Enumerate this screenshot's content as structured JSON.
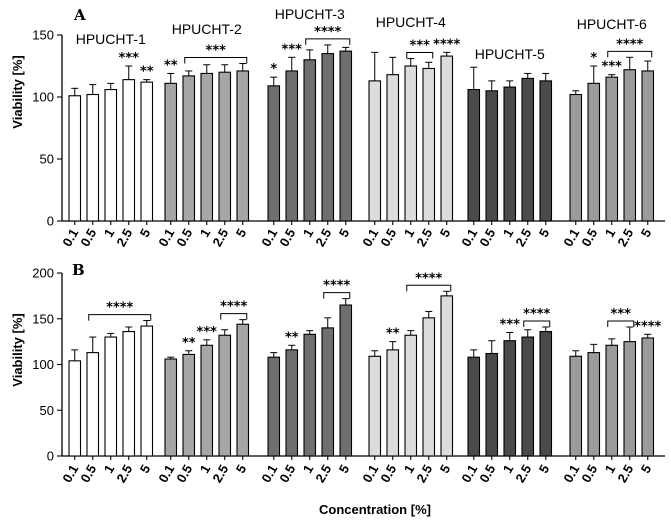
{
  "figure": {
    "x_axis_title": "Concentration [%]",
    "y_axis_title": "Viability [%]"
  },
  "chart_data": [
    {
      "type": "bar",
      "panel": "A",
      "ylabel": "Viability [%]",
      "ylim": [
        0,
        150
      ],
      "yticks": [
        0,
        50,
        100,
        150
      ],
      "categories": [
        "0.1",
        "0.5",
        "1",
        "2.5",
        "5"
      ],
      "series": [
        {
          "name": "HPUCHT-1",
          "title": "HPUCHT-1",
          "fill": "#ffffff",
          "values": [
            101,
            102,
            106,
            114,
            112
          ],
          "errors": [
            6,
            8,
            5,
            11,
            2
          ],
          "marks": [
            "",
            "",
            "",
            "***",
            "**"
          ],
          "bracket": null
        },
        {
          "name": "HPUCHT-2",
          "title": "HPUCHT-2",
          "fill": "#a6a6a6",
          "values": [
            111,
            117,
            119,
            120,
            121
          ],
          "errors": [
            8,
            4,
            7,
            6,
            6
          ],
          "marks": [
            "**",
            "",
            "",
            "",
            ""
          ],
          "bracket": {
            "from": 1,
            "to": 4,
            "label": "***"
          }
        },
        {
          "name": "HPUCHT-3",
          "title": "HPUCHT-3",
          "fill": "#6f6f6f",
          "values": [
            109,
            121,
            130,
            135,
            137
          ],
          "errors": [
            7,
            11,
            8,
            7,
            3
          ],
          "marks": [
            "*",
            "***",
            "",
            "",
            ""
          ],
          "bracket": {
            "from": 2,
            "to": 4,
            "label": "****"
          }
        },
        {
          "name": "HPUCHT-4",
          "title": "HPUCHT-4",
          "fill": "#dcdcdc",
          "values": [
            113,
            118,
            125,
            123,
            133
          ],
          "errors": [
            23,
            14,
            6,
            5,
            3
          ],
          "marks": [
            "",
            "",
            "",
            "",
            "****"
          ],
          "bracket": {
            "from": 2,
            "to": 3,
            "label": "***"
          }
        },
        {
          "name": "HPUCHT-5",
          "title": "HPUCHT-5",
          "fill": "#4a4a4a",
          "values": [
            106,
            105,
            108,
            115,
            113
          ],
          "errors": [
            18,
            8,
            5,
            4,
            6
          ],
          "marks": [
            "",
            "",
            "",
            "",
            ""
          ],
          "bracket": null
        },
        {
          "name": "HPUCHT-6",
          "title": "HPUCHT-6",
          "fill": "#9b9b9b",
          "values": [
            102,
            111,
            116,
            122,
            121
          ],
          "errors": [
            3,
            14,
            2,
            10,
            8
          ],
          "marks": [
            "",
            "*",
            "***",
            "",
            ""
          ],
          "bracket": {
            "from": 2,
            "to": 4,
            "label": "****"
          }
        }
      ]
    },
    {
      "type": "bar",
      "panel": "B",
      "ylabel": "Viability [%]",
      "xlabel": "Concentration [%]",
      "ylim": [
        0,
        200
      ],
      "yticks": [
        0,
        50,
        100,
        150,
        200
      ],
      "categories": [
        "0.1",
        "0.5",
        "1",
        "2.5",
        "5"
      ],
      "series": [
        {
          "name": "HPUCHT-1",
          "fill": "#ffffff",
          "values": [
            104,
            113,
            130,
            136,
            142
          ],
          "errors": [
            12,
            17,
            4,
            5,
            6
          ],
          "marks": [
            "",
            "",
            "",
            "",
            ""
          ],
          "bracket": {
            "from": 1,
            "to": 4,
            "label": "****"
          }
        },
        {
          "name": "HPUCHT-2",
          "fill": "#a6a6a6",
          "values": [
            106,
            111,
            121,
            132,
            144
          ],
          "errors": [
            2,
            4,
            6,
            6,
            5
          ],
          "marks": [
            "",
            "**",
            "***",
            "",
            ""
          ],
          "bracket": {
            "from": 3,
            "to": 4,
            "label": "****"
          }
        },
        {
          "name": "HPUCHT-3",
          "fill": "#6f6f6f",
          "values": [
            108,
            116,
            133,
            140,
            165
          ],
          "errors": [
            5,
            5,
            4,
            11,
            7
          ],
          "marks": [
            "",
            "**",
            "",
            "",
            ""
          ],
          "bracket": {
            "from": 3,
            "to": 4,
            "label": "****"
          }
        },
        {
          "name": "HPUCHT-4",
          "fill": "#dcdcdc",
          "values": [
            109,
            116,
            132,
            151,
            175
          ],
          "errors": [
            6,
            9,
            5,
            7,
            5
          ],
          "marks": [
            "",
            "**",
            "",
            "",
            ""
          ],
          "bracket": {
            "from": 2,
            "to": 4,
            "label": "****"
          }
        },
        {
          "name": "HPUCHT-5",
          "fill": "#4a4a4a",
          "values": [
            108,
            112,
            126,
            130,
            136
          ],
          "errors": [
            8,
            14,
            9,
            8,
            5
          ],
          "marks": [
            "",
            "",
            "***",
            "",
            ""
          ],
          "bracket": {
            "from": 3,
            "to": 4,
            "label": "****"
          }
        },
        {
          "name": "HPUCHT-6",
          "fill": "#9b9b9b",
          "values": [
            109,
            113,
            121,
            125,
            129
          ],
          "errors": [
            6,
            9,
            7,
            16,
            4
          ],
          "marks": [
            "",
            "",
            "",
            "",
            "****"
          ],
          "bracket": {
            "from": 2,
            "to": 3,
            "label": "***"
          }
        }
      ]
    }
  ]
}
